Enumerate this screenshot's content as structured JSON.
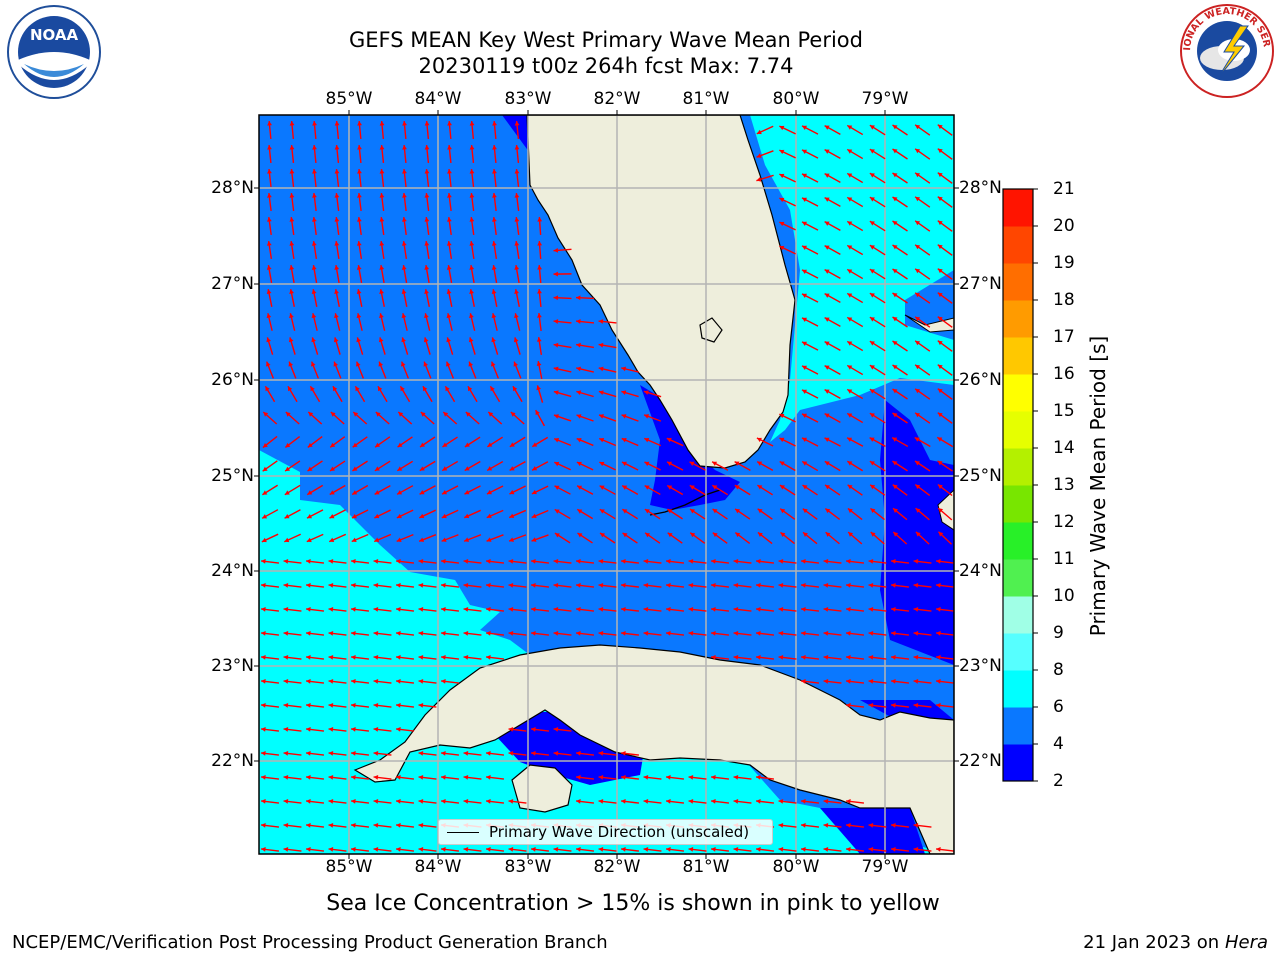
{
  "title_line1": "GEFS MEAN Key West Primary Wave Mean Period",
  "title_line2": "20230119 t00z 264h fcst   Max: 7.74",
  "lon_ticks": [
    "85°W",
    "84°W",
    "83°W",
    "82°W",
    "81°W",
    "80°W",
    "79°W"
  ],
  "lat_ticks": [
    "28°N",
    "27°N",
    "26°N",
    "25°N",
    "24°N",
    "23°N",
    "22°N"
  ],
  "colorbar": {
    "label": "Primary Wave Mean Period [s]",
    "ticks": [
      "21",
      "20",
      "19",
      "18",
      "17",
      "16",
      "15",
      "14",
      "13",
      "12",
      "11",
      "10",
      "9",
      "8",
      "6",
      "4",
      "2"
    ],
    "bands": [
      {
        "from": 2,
        "to": 4,
        "color": "#0000ff"
      },
      {
        "from": 4,
        "to": 6,
        "color": "#0a78ff"
      },
      {
        "from": 6,
        "to": 8,
        "color": "#00ffff"
      },
      {
        "from": 8,
        "to": 9,
        "color": "#56ffff"
      },
      {
        "from": 9,
        "to": 10,
        "color": "#a0ffe6"
      },
      {
        "from": 10,
        "to": 11,
        "color": "#50f050"
      },
      {
        "from": 11,
        "to": 12,
        "color": "#28f028"
      },
      {
        "from": 12,
        "to": 13,
        "color": "#78e600"
      },
      {
        "from": 13,
        "to": 14,
        "color": "#b4f000"
      },
      {
        "from": 14,
        "to": 15,
        "color": "#e6ff00"
      },
      {
        "from": 15,
        "to": 16,
        "color": "#ffff00"
      },
      {
        "from": 16,
        "to": 17,
        "color": "#ffc800"
      },
      {
        "from": 17,
        "to": 18,
        "color": "#ff9b00"
      },
      {
        "from": 18,
        "to": 19,
        "color": "#ff6e00"
      },
      {
        "from": 19,
        "to": 20,
        "color": "#ff4600"
      },
      {
        "from": 20,
        "to": 21,
        "color": "#ff1400"
      }
    ]
  },
  "legend_text": "Primary Wave Direction (unscaled)",
  "subtitle": "Sea Ice Concentration > 15% is shown in pink to yellow",
  "footer_left": "NCEP/EMC/Verification Post Processing Product Generation Branch",
  "footer_date": "21 Jan 2023 on ",
  "footer_machine": "Hera",
  "logo_noaa_text": "NOAA",
  "logo_nws_text": "NATIONAL WEATHER SERVICE",
  "colors": {
    "land": "#eeeedc",
    "period_2_4": "#0000ff",
    "period_4_6": "#0a78ff",
    "period_6_8": "#00ffff",
    "arrow": "#ff0000",
    "grid": "#b4b4b4"
  }
}
